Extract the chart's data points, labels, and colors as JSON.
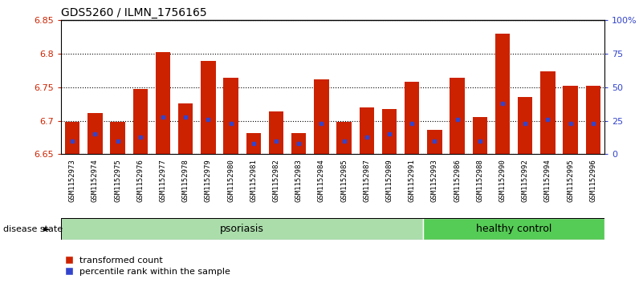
{
  "title": "GDS5260 / ILMN_1756165",
  "samples": [
    "GSM1152973",
    "GSM1152974",
    "GSM1152975",
    "GSM1152976",
    "GSM1152977",
    "GSM1152978",
    "GSM1152979",
    "GSM1152980",
    "GSM1152981",
    "GSM1152982",
    "GSM1152983",
    "GSM1152984",
    "GSM1152985",
    "GSM1152987",
    "GSM1152989",
    "GSM1152991",
    "GSM1152993",
    "GSM1152986",
    "GSM1152988",
    "GSM1152990",
    "GSM1152992",
    "GSM1152994",
    "GSM1152995",
    "GSM1152996"
  ],
  "bar_values": [
    6.698,
    6.712,
    6.698,
    6.748,
    6.802,
    6.726,
    6.79,
    6.764,
    6.682,
    6.714,
    6.682,
    6.762,
    6.698,
    6.72,
    6.718,
    6.758,
    6.686,
    6.764,
    6.706,
    6.83,
    6.736,
    6.774,
    6.752,
    6.752
  ],
  "percentile_values": [
    10,
    15,
    10,
    13,
    28,
    28,
    26,
    23,
    8,
    10,
    8,
    23,
    10,
    13,
    15,
    23,
    10,
    26,
    10,
    38,
    23,
    26,
    23,
    23
  ],
  "psoriasis_count": 16,
  "healthy_count": 8,
  "ymin": 6.65,
  "ymax": 6.85,
  "yticks": [
    6.65,
    6.7,
    6.75,
    6.8,
    6.85
  ],
  "ytick_labels": [
    "6.65",
    "6.7",
    "6.75",
    "6.8",
    "6.85"
  ],
  "right_yticks": [
    0,
    25,
    50,
    75,
    100
  ],
  "right_ytick_labels": [
    "0",
    "25",
    "50",
    "75",
    "100%"
  ],
  "bar_color": "#cc2200",
  "blue_color": "#3344cc",
  "plot_bg": "#ffffff",
  "tick_area_bg": "#d8d8d8",
  "psoriasis_color": "#aaddaa",
  "healthy_color": "#55cc55",
  "legend_red": "transformed count",
  "legend_blue": "percentile rank within the sample",
  "disease_state_label": "disease state",
  "psoriasis_label": "psoriasis",
  "healthy_label": "healthy control"
}
